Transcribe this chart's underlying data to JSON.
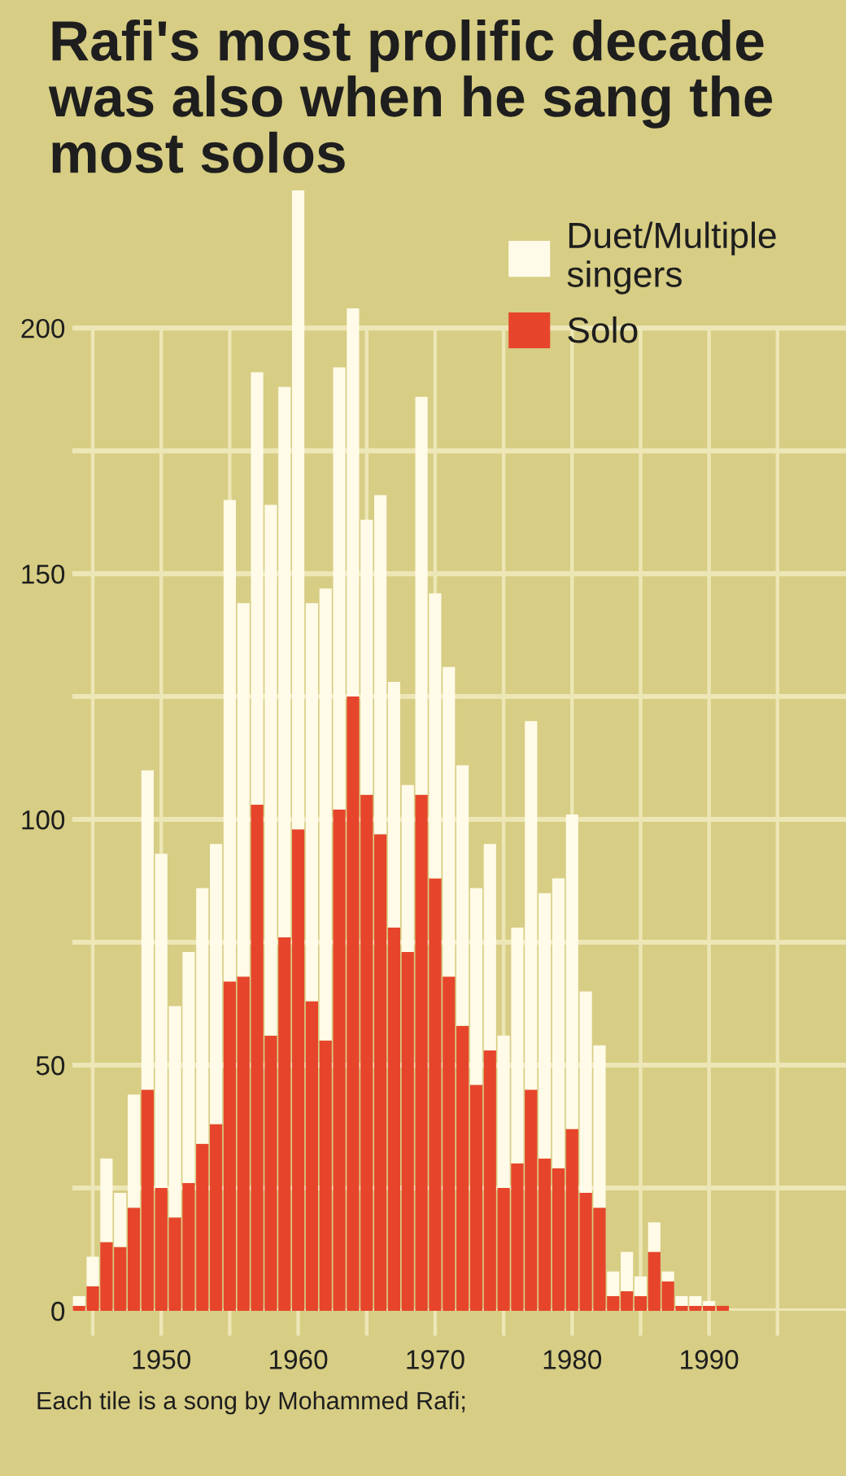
{
  "chart_data": {
    "type": "bar",
    "title": "Rafi's most prolific decade\nwas also when he sang the\nmost solos",
    "annotations": [
      "Each tile is a song by Mohammed Rafi;"
    ],
    "x": [
      1944,
      1945,
      1946,
      1947,
      1948,
      1949,
      1950,
      1951,
      1952,
      1953,
      1954,
      1955,
      1956,
      1957,
      1958,
      1959,
      1960,
      1961,
      1962,
      1963,
      1964,
      1965,
      1966,
      1967,
      1968,
      1969,
      1970,
      1971,
      1972,
      1973,
      1974,
      1975,
      1976,
      1977,
      1978,
      1979,
      1980,
      1981,
      1982,
      1983,
      1984,
      1985,
      1986,
      1987,
      1988,
      1989,
      1990,
      1991
    ],
    "series": [
      {
        "name": "Solo",
        "color": "#e6452c",
        "values": [
          1,
          5,
          14,
          13,
          21,
          45,
          25,
          19,
          26,
          34,
          38,
          67,
          68,
          103,
          56,
          76,
          98,
          63,
          55,
          102,
          125,
          105,
          97,
          78,
          73,
          105,
          88,
          68,
          58,
          46,
          53,
          25,
          30,
          45,
          31,
          29,
          37,
          24,
          21,
          3,
          4,
          3,
          12,
          6,
          1,
          1,
          1,
          1
        ]
      },
      {
        "name": "Duet/Multiple\nsingers",
        "color": "#fffbe8",
        "values": [
          2,
          6,
          17,
          11,
          23,
          65,
          68,
          43,
          47,
          52,
          57,
          98,
          76,
          88,
          108,
          112,
          130,
          81,
          92,
          90,
          79,
          56,
          69,
          50,
          34,
          81,
          58,
          63,
          53,
          40,
          42,
          31,
          48,
          75,
          54,
          59,
          64,
          41,
          33,
          5,
          8,
          4,
          6,
          2,
          2,
          2,
          1,
          0
        ]
      }
    ],
    "stacked": true,
    "xlim": [
      1943.5,
      2000
    ],
    "xticks": [
      {
        "value": 1945,
        "label": null
      },
      1950,
      {
        "value": 1955,
        "label": null
      },
      1960,
      {
        "value": 1965,
        "label": null
      },
      1970,
      {
        "value": 1975,
        "label": null
      },
      1980,
      {
        "value": 1985,
        "label": null
      },
      1990,
      {
        "value": 1995,
        "label": null
      }
    ],
    "ylim": [
      0,
      228
    ],
    "yticks": [
      0,
      {
        "value": 25,
        "label": null
      },
      50,
      {
        "value": 75,
        "label": null
      },
      100,
      {
        "value": 125,
        "label": null
      },
      150,
      {
        "value": 175,
        "label": null
      },
      200
    ],
    "grid": true,
    "legend": "top right"
  }
}
